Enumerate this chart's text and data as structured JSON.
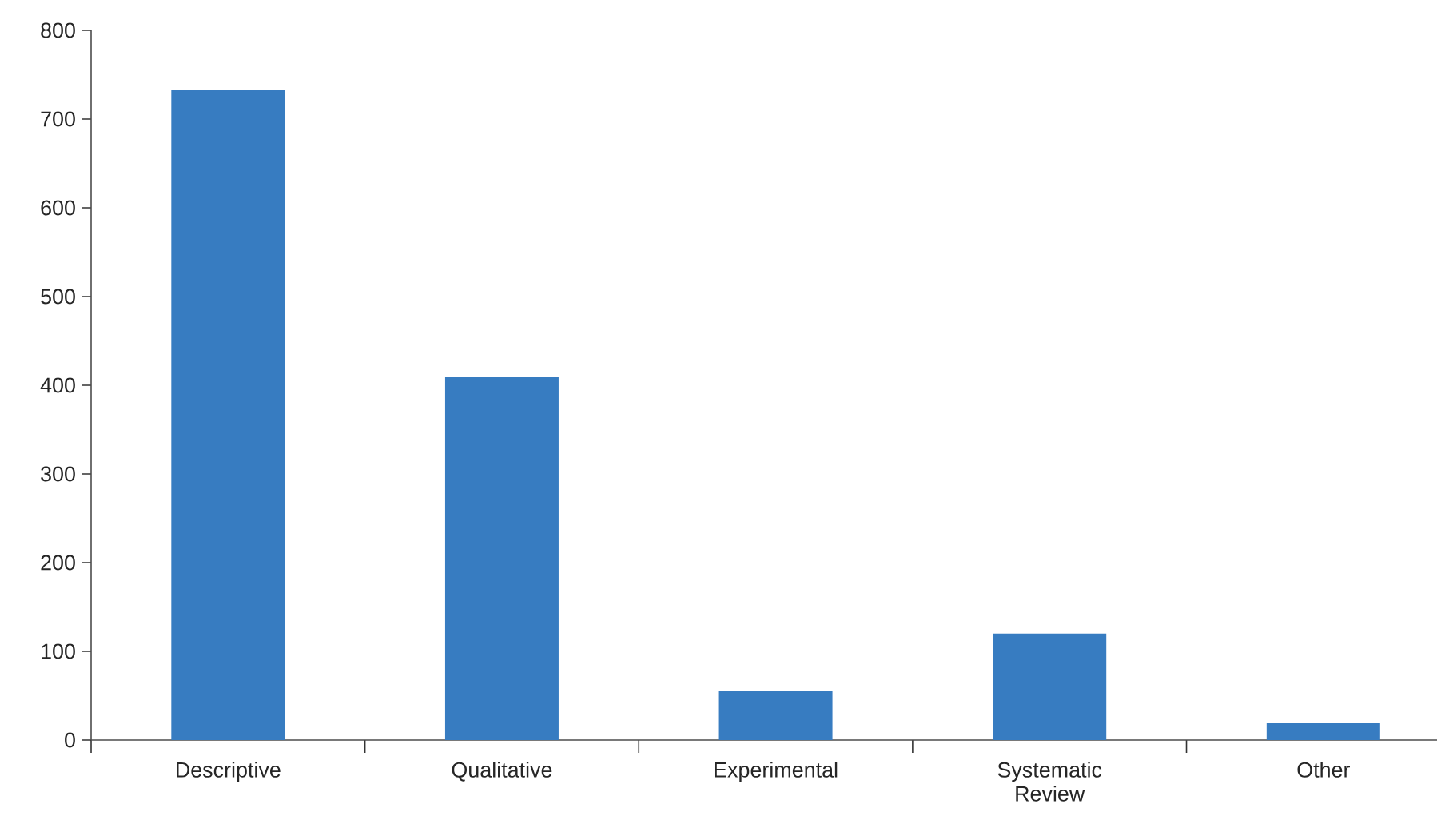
{
  "chart_data": {
    "type": "bar",
    "categories": [
      "Descriptive",
      "Qualitative",
      "Experimental",
      "Systematic Review",
      "Other"
    ],
    "values": [
      733,
      409,
      55,
      120,
      19
    ],
    "color": "#377cc1",
    "ylim": [
      0,
      800
    ],
    "yticks": [
      0,
      100,
      200,
      300,
      400,
      500,
      600,
      700,
      800
    ]
  }
}
